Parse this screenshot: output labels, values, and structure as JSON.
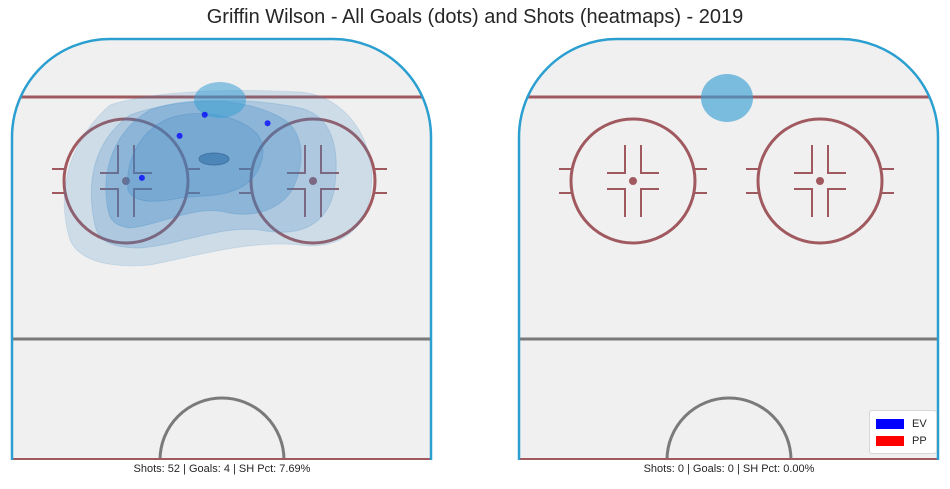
{
  "title": "Griffin Wilson - All Goals (dots) and Shots (heatmaps) - 2019",
  "chart_data": [
    {
      "type": "heatmap",
      "strength": "EV",
      "caption": "Shots: 52 | Goals: 4 | SH Pct: 7.69%",
      "shots": 52,
      "goals": 4,
      "sh_pct": 7.69,
      "goal_points": [
        {
          "x": 0.46,
          "y": 0.82
        },
        {
          "x": 0.4,
          "y": 0.77
        },
        {
          "x": 0.61,
          "y": 0.8
        },
        {
          "x": 0.31,
          "y": 0.67
        }
      ],
      "heatmap_color": "#3a86c4",
      "dot_color": "#0000ff"
    },
    {
      "type": "heatmap",
      "strength": "PP",
      "caption": "Shots: 0 | Goals: 0 | SH Pct: 0.00%",
      "shots": 0,
      "goals": 0,
      "sh_pct": 0.0,
      "goal_points": [],
      "heatmap_color": "#3a9fd4",
      "dot_color": "#ff0000"
    }
  ],
  "legend": {
    "location": "bottom-right",
    "items": [
      {
        "label": "EV",
        "color": "#0000ff"
      },
      {
        "label": "PP",
        "color": "#ff0000"
      }
    ]
  },
  "rink": {
    "board_color": "#2a9fd0",
    "red_line_color": "#a05a5f",
    "blue_line_color": "#7a7a7a",
    "ice_color": "#f0f0f0"
  }
}
